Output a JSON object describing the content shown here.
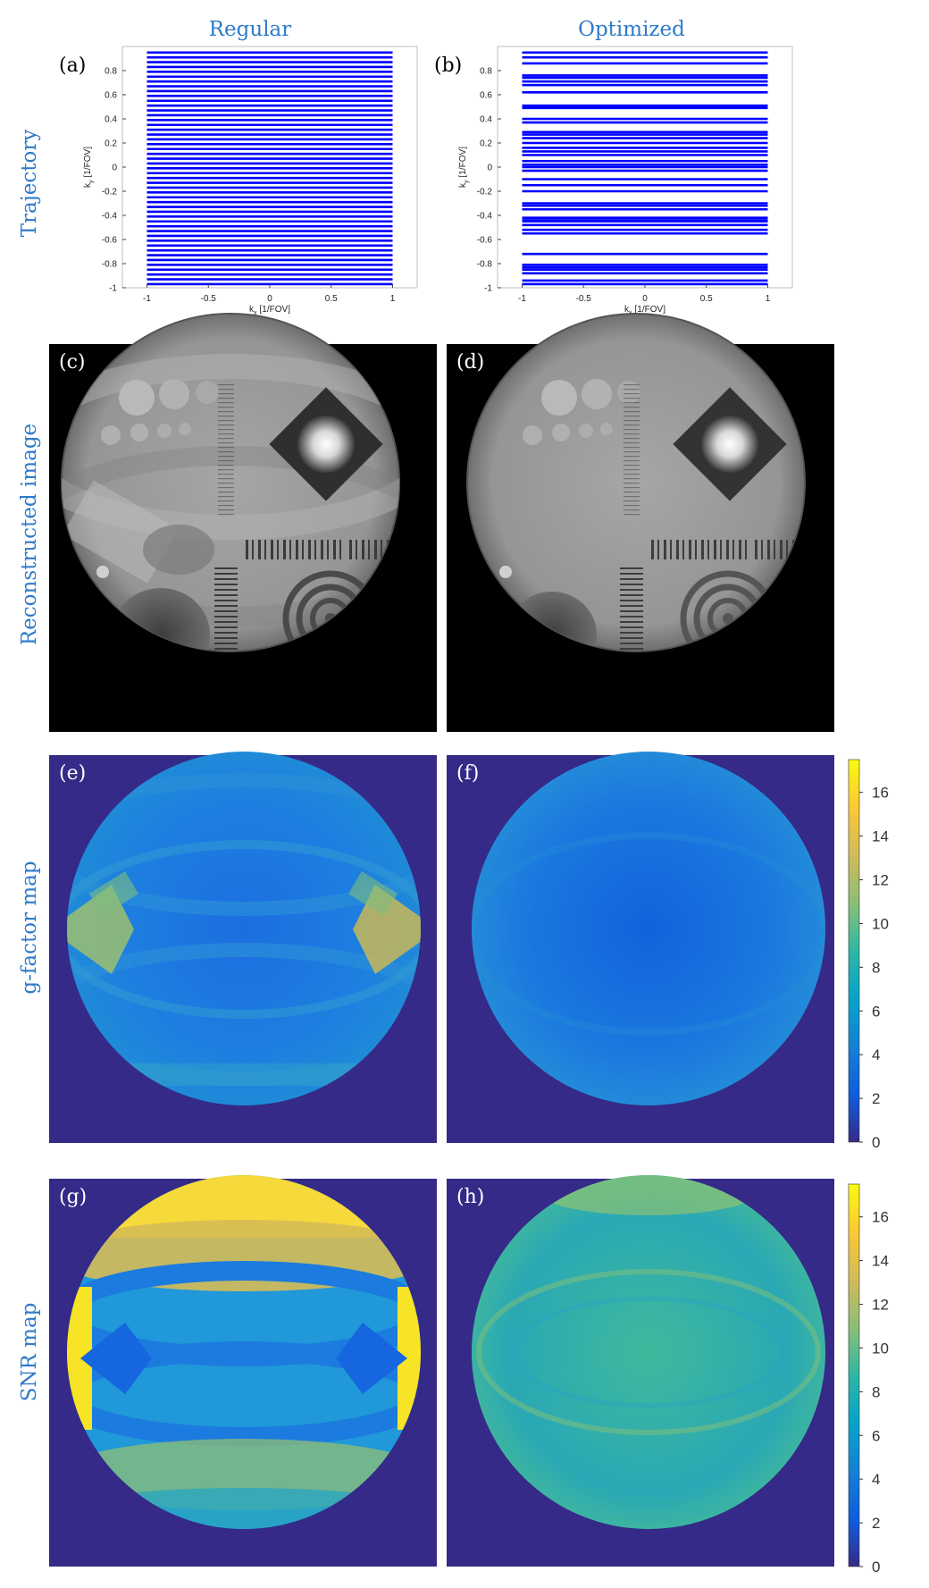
{
  "column_titles": [
    "Regular",
    "Optimized"
  ],
  "row_labels": [
    "Trajectory",
    "Reconstructed image",
    "g-factor map",
    "SNR map"
  ],
  "panel_labels": [
    "(a)",
    "(b)",
    "(c)",
    "(d)",
    "(e)",
    "(f)",
    "(g)",
    "(h)"
  ],
  "trajectory": {
    "xlabel": "k",
    "xlabel_sub": "x",
    "xlabel_unit": "[1/FOV]",
    "ylabel": "k",
    "ylabel_sub": "y",
    "ylabel_unit": "[1/FOV]",
    "xlim": [
      -1.2,
      1.2
    ],
    "ylim": [
      -1,
      1
    ],
    "xticks": [
      "-1",
      "-0.5",
      "0",
      "0.5",
      "1"
    ],
    "yticks": [
      "-1",
      "-0.8",
      "-0.6",
      "-0.4",
      "-0.2",
      "0",
      "0.2",
      "0.4",
      "0.6",
      "0.8"
    ],
    "line_color": "#0000ff"
  },
  "chart_data": [
    {
      "type": "line",
      "panel": "(a)",
      "title": "Regular",
      "xlabel": "kx [1/FOV]",
      "ylabel": "ky [1/FOV]",
      "xlim": [
        -1.2,
        1.2
      ],
      "ylim": [
        -1,
        1
      ],
      "x_extent": [
        -1,
        1
      ],
      "ky_lines": [
        -0.97,
        -0.93,
        -0.89,
        -0.85,
        -0.81,
        -0.77,
        -0.73,
        -0.69,
        -0.65,
        -0.61,
        -0.57,
        -0.53,
        -0.49,
        -0.45,
        -0.41,
        -0.37,
        -0.33,
        -0.29,
        -0.25,
        -0.21,
        -0.17,
        -0.13,
        -0.09,
        -0.05,
        -0.01,
        0.03,
        0.07,
        0.11,
        0.15,
        0.19,
        0.23,
        0.27,
        0.31,
        0.35,
        0.39,
        0.43,
        0.47,
        0.51,
        0.55,
        0.59,
        0.63,
        0.67,
        0.71,
        0.75,
        0.79,
        0.83,
        0.87,
        0.91,
        0.95
      ]
    },
    {
      "type": "line",
      "panel": "(b)",
      "title": "Optimized",
      "xlabel": "kx [1/FOV]",
      "ylabel": "ky [1/FOV]",
      "xlim": [
        -1.2,
        1.2
      ],
      "ylim": [
        -1,
        1
      ],
      "x_extent": [
        -1,
        1
      ],
      "ky_lines": [
        -0.97,
        -0.94,
        -0.88,
        -0.85,
        -0.83,
        -0.81,
        -0.72,
        -0.55,
        -0.52,
        -0.48,
        -0.45,
        -0.44,
        -0.42,
        -0.35,
        -0.32,
        -0.3,
        -0.2,
        -0.15,
        -0.1,
        -0.03,
        0.0,
        0.02,
        0.05,
        0.1,
        0.13,
        0.16,
        0.2,
        0.24,
        0.27,
        0.29,
        0.37,
        0.4,
        0.49,
        0.51,
        0.62,
        0.68,
        0.71,
        0.74,
        0.76,
        0.86,
        0.91,
        0.95
      ]
    },
    {
      "type": "heatmap",
      "panels": [
        "(e)",
        "(f)",
        "(g)",
        "(h)"
      ],
      "colormap": "parula",
      "colorbar_ticks": [
        0,
        2,
        4,
        6,
        8,
        10,
        12,
        14,
        16
      ],
      "colorbar_range": [
        0,
        17.5
      ]
    }
  ],
  "colorbar": {
    "ticks": [
      "0",
      "2",
      "4",
      "6",
      "8",
      "10",
      "12",
      "14",
      "16"
    ]
  },
  "colors": {
    "accent_blue": "#2f7bc9",
    "map_background": "#352a87",
    "trajectory_line": "#0000ff"
  }
}
